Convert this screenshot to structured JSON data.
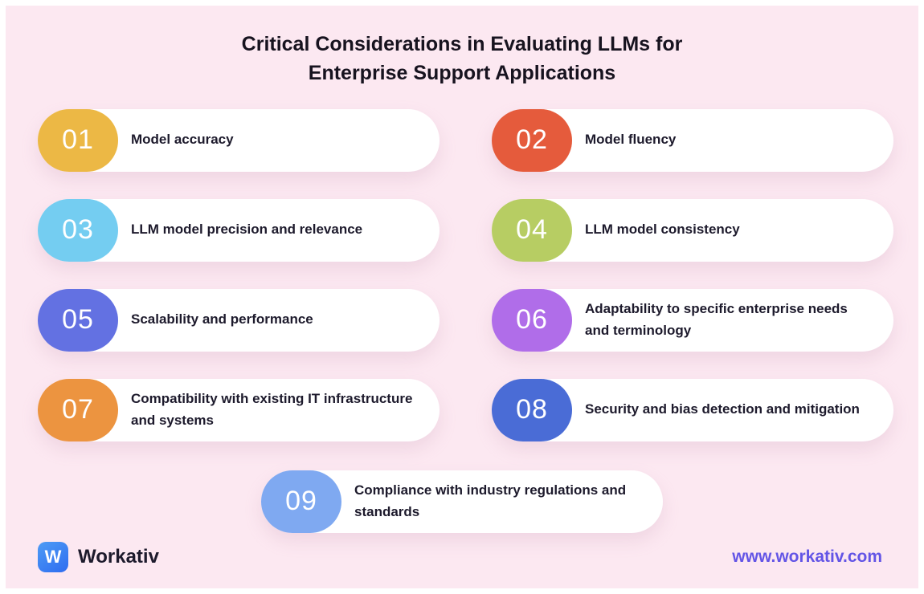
{
  "title": {
    "line1": "Critical Considerations in Evaluating LLMs for",
    "line2": "Enterprise Support Applications"
  },
  "cards": [
    {
      "number": "01",
      "label": "Model accuracy",
      "color": "#ecb845"
    },
    {
      "number": "02",
      "label": "Model fluency",
      "color": "#e55b3c"
    },
    {
      "number": "03",
      "label": "LLM model precision and relevance",
      "color": "#74cdf1"
    },
    {
      "number": "04",
      "label": "LLM model consistency",
      "color": "#b7cd63"
    },
    {
      "number": "05",
      "label": "Scalability and performance",
      "color": "#6371e2"
    },
    {
      "number": "06",
      "label": "Adaptability to specific enterprise needs and terminology",
      "color": "#b06de9"
    },
    {
      "number": "07",
      "label": "Compatibility with existing IT infrastructure and systems",
      "color": "#ec9440"
    },
    {
      "number": "08",
      "label": "Security and bias detection and mitigation",
      "color": "#4a6cd6"
    },
    {
      "number": "09",
      "label": "Compliance with industry regulations and standards",
      "color": "#7fa9f1"
    }
  ],
  "footer": {
    "logo_letter": "W",
    "brand": "Workativ",
    "website": "www.workativ.com"
  }
}
